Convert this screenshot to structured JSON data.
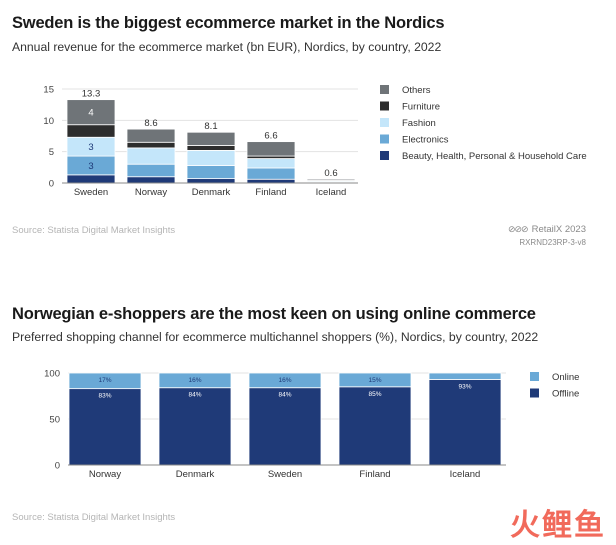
{
  "chart_data": [
    {
      "type": "bar",
      "stacked": true,
      "title": "Sweden is the biggest ecommerce market in the Nordics",
      "subtitle": "Annual revenue for the ecommerce market (bn EUR), Nordics, by country, 2022",
      "categories": [
        "Sweden",
        "Norway",
        "Denmark",
        "Finland",
        "Iceland"
      ],
      "series": [
        {
          "name": "Beauty, Health, Personal & Household Care",
          "color": "#1f3a78",
          "values": [
            1.3,
            1.0,
            0.7,
            0.6,
            0.05
          ]
        },
        {
          "name": "Electronics",
          "color": "#6aa9d6",
          "values": [
            3.0,
            2.0,
            2.1,
            1.8,
            0.1
          ]
        },
        {
          "name": "Fashion",
          "color": "#c4e6fa",
          "values": [
            3.0,
            2.6,
            2.4,
            1.5,
            0.15
          ]
        },
        {
          "name": "Furniture",
          "color": "#2d2d2d",
          "values": [
            2.0,
            0.9,
            0.8,
            0.4,
            0.1
          ]
        },
        {
          "name": "Others",
          "color": "#6f7478",
          "values": [
            4.0,
            2.1,
            2.1,
            2.3,
            0.2
          ]
        }
      ],
      "totals": [
        "13.3",
        "8.6",
        "8.1",
        "6.6",
        "0.6"
      ],
      "segment_labels": [
        {
          "category": 0,
          "series": 1,
          "text": "3"
        },
        {
          "category": 0,
          "series": 2,
          "text": "3"
        },
        {
          "category": 0,
          "series": 4,
          "text": "4"
        }
      ],
      "ylim": [
        0,
        15
      ],
      "yticks": [
        "0",
        "5",
        "10",
        "15"
      ],
      "legend_order": [
        4,
        3,
        2,
        1,
        0
      ],
      "legend_position": "right",
      "grid": true,
      "source": "Source: Statista Digital Market Insights",
      "brand": "RetailX 2023",
      "code": "RXRND23RP-3-v8"
    },
    {
      "type": "bar",
      "stacked": true,
      "title": "Norwegian e-shoppers are the most keen on using online commerce",
      "subtitle": "Preferred shopping channel for ecommerce multichannel shoppers (%), Nordics, by country, 2022",
      "categories": [
        "Norway",
        "Denmark",
        "Sweden",
        "Finland",
        "Iceland"
      ],
      "series": [
        {
          "name": "Offline",
          "color": "#1f3a78",
          "values": [
            83,
            84,
            84,
            85,
            93
          ],
          "labels": [
            "83%",
            "84%",
            "84%",
            "85%",
            "93%"
          ]
        },
        {
          "name": "Online",
          "color": "#6aa9d6",
          "values": [
            17,
            16,
            16,
            15,
            7
          ],
          "labels": [
            "17%",
            "16%",
            "16%",
            "15%",
            ""
          ]
        }
      ],
      "ylim": [
        0,
        100
      ],
      "yticks": [
        "0",
        "50",
        "100"
      ],
      "legend_order": [
        1,
        0
      ],
      "legend_position": "right",
      "grid": true,
      "source": "Source: Statista Digital Market Insights"
    }
  ],
  "watermark": "火鲤鱼"
}
